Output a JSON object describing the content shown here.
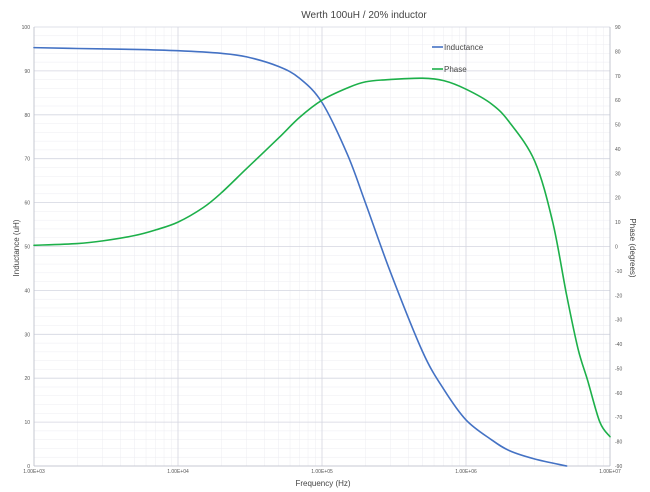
{
  "chart_data": {
    "type": "line",
    "title": "Werth 100uH / 20% inductor",
    "xlabel": "Frequency (Hz)",
    "ylabel": "Inductance (uH)",
    "y2label": "Phase (degrees)",
    "x_scale": "log",
    "xlim": [
      1000,
      10000000
    ],
    "ylim": [
      0,
      100
    ],
    "y2lim": [
      -90,
      90
    ],
    "x_ticks": [
      "1.00E+03",
      "1.00E+04",
      "1.00E+05",
      "1.00E+06",
      "1.00E+07"
    ],
    "y_ticks": [
      "0",
      "10",
      "20",
      "30",
      "40",
      "50",
      "60",
      "70",
      "80",
      "90",
      "100"
    ],
    "y2_ticks": [
      "-90",
      "-80",
      "-70",
      "-60",
      "-50",
      "-40",
      "-30",
      "-20",
      "-10",
      "0",
      "10",
      "20",
      "30",
      "40",
      "50",
      "60",
      "70",
      "80",
      "90"
    ],
    "grid": true,
    "legend_position": "top-right",
    "series": [
      {
        "name": "Inductance",
        "axis": "left",
        "color": "#4472C4",
        "x": [
          1000,
          2000,
          5000,
          10000,
          20000,
          30000,
          50000,
          70000,
          100000,
          150000,
          200000,
          300000,
          500000,
          700000,
          1000000,
          1500000,
          2000000,
          3000000,
          5000000
        ],
        "y": [
          95.3,
          95.1,
          94.9,
          94.6,
          94.0,
          93.2,
          91.0,
          88.3,
          82.8,
          71.0,
          60.0,
          44.0,
          26.0,
          17.5,
          10.5,
          6.0,
          3.5,
          1.6,
          0
        ]
      },
      {
        "name": "Phase",
        "axis": "right",
        "color": "#1DB04A",
        "x": [
          1000,
          2000,
          3000,
          5000,
          7000,
          10000,
          15000,
          20000,
          30000,
          50000,
          70000,
          100000,
          150000,
          200000,
          300000,
          500000,
          700000,
          1000000,
          1500000,
          2000000,
          3000000,
          4000000,
          5000000,
          6000000,
          7000000,
          8500000,
          10000000
        ],
        "y": [
          0.5,
          1.2,
          2.3,
          4.5,
          6.8,
          10.0,
          16.0,
          22.0,
          32.0,
          44.5,
          53.0,
          60.0,
          65.0,
          67.5,
          68.5,
          69.0,
          68.0,
          64.5,
          58.5,
          51.0,
          35.0,
          10.0,
          -20.0,
          -42.0,
          -55.0,
          -72.0,
          -78.0
        ]
      }
    ]
  }
}
